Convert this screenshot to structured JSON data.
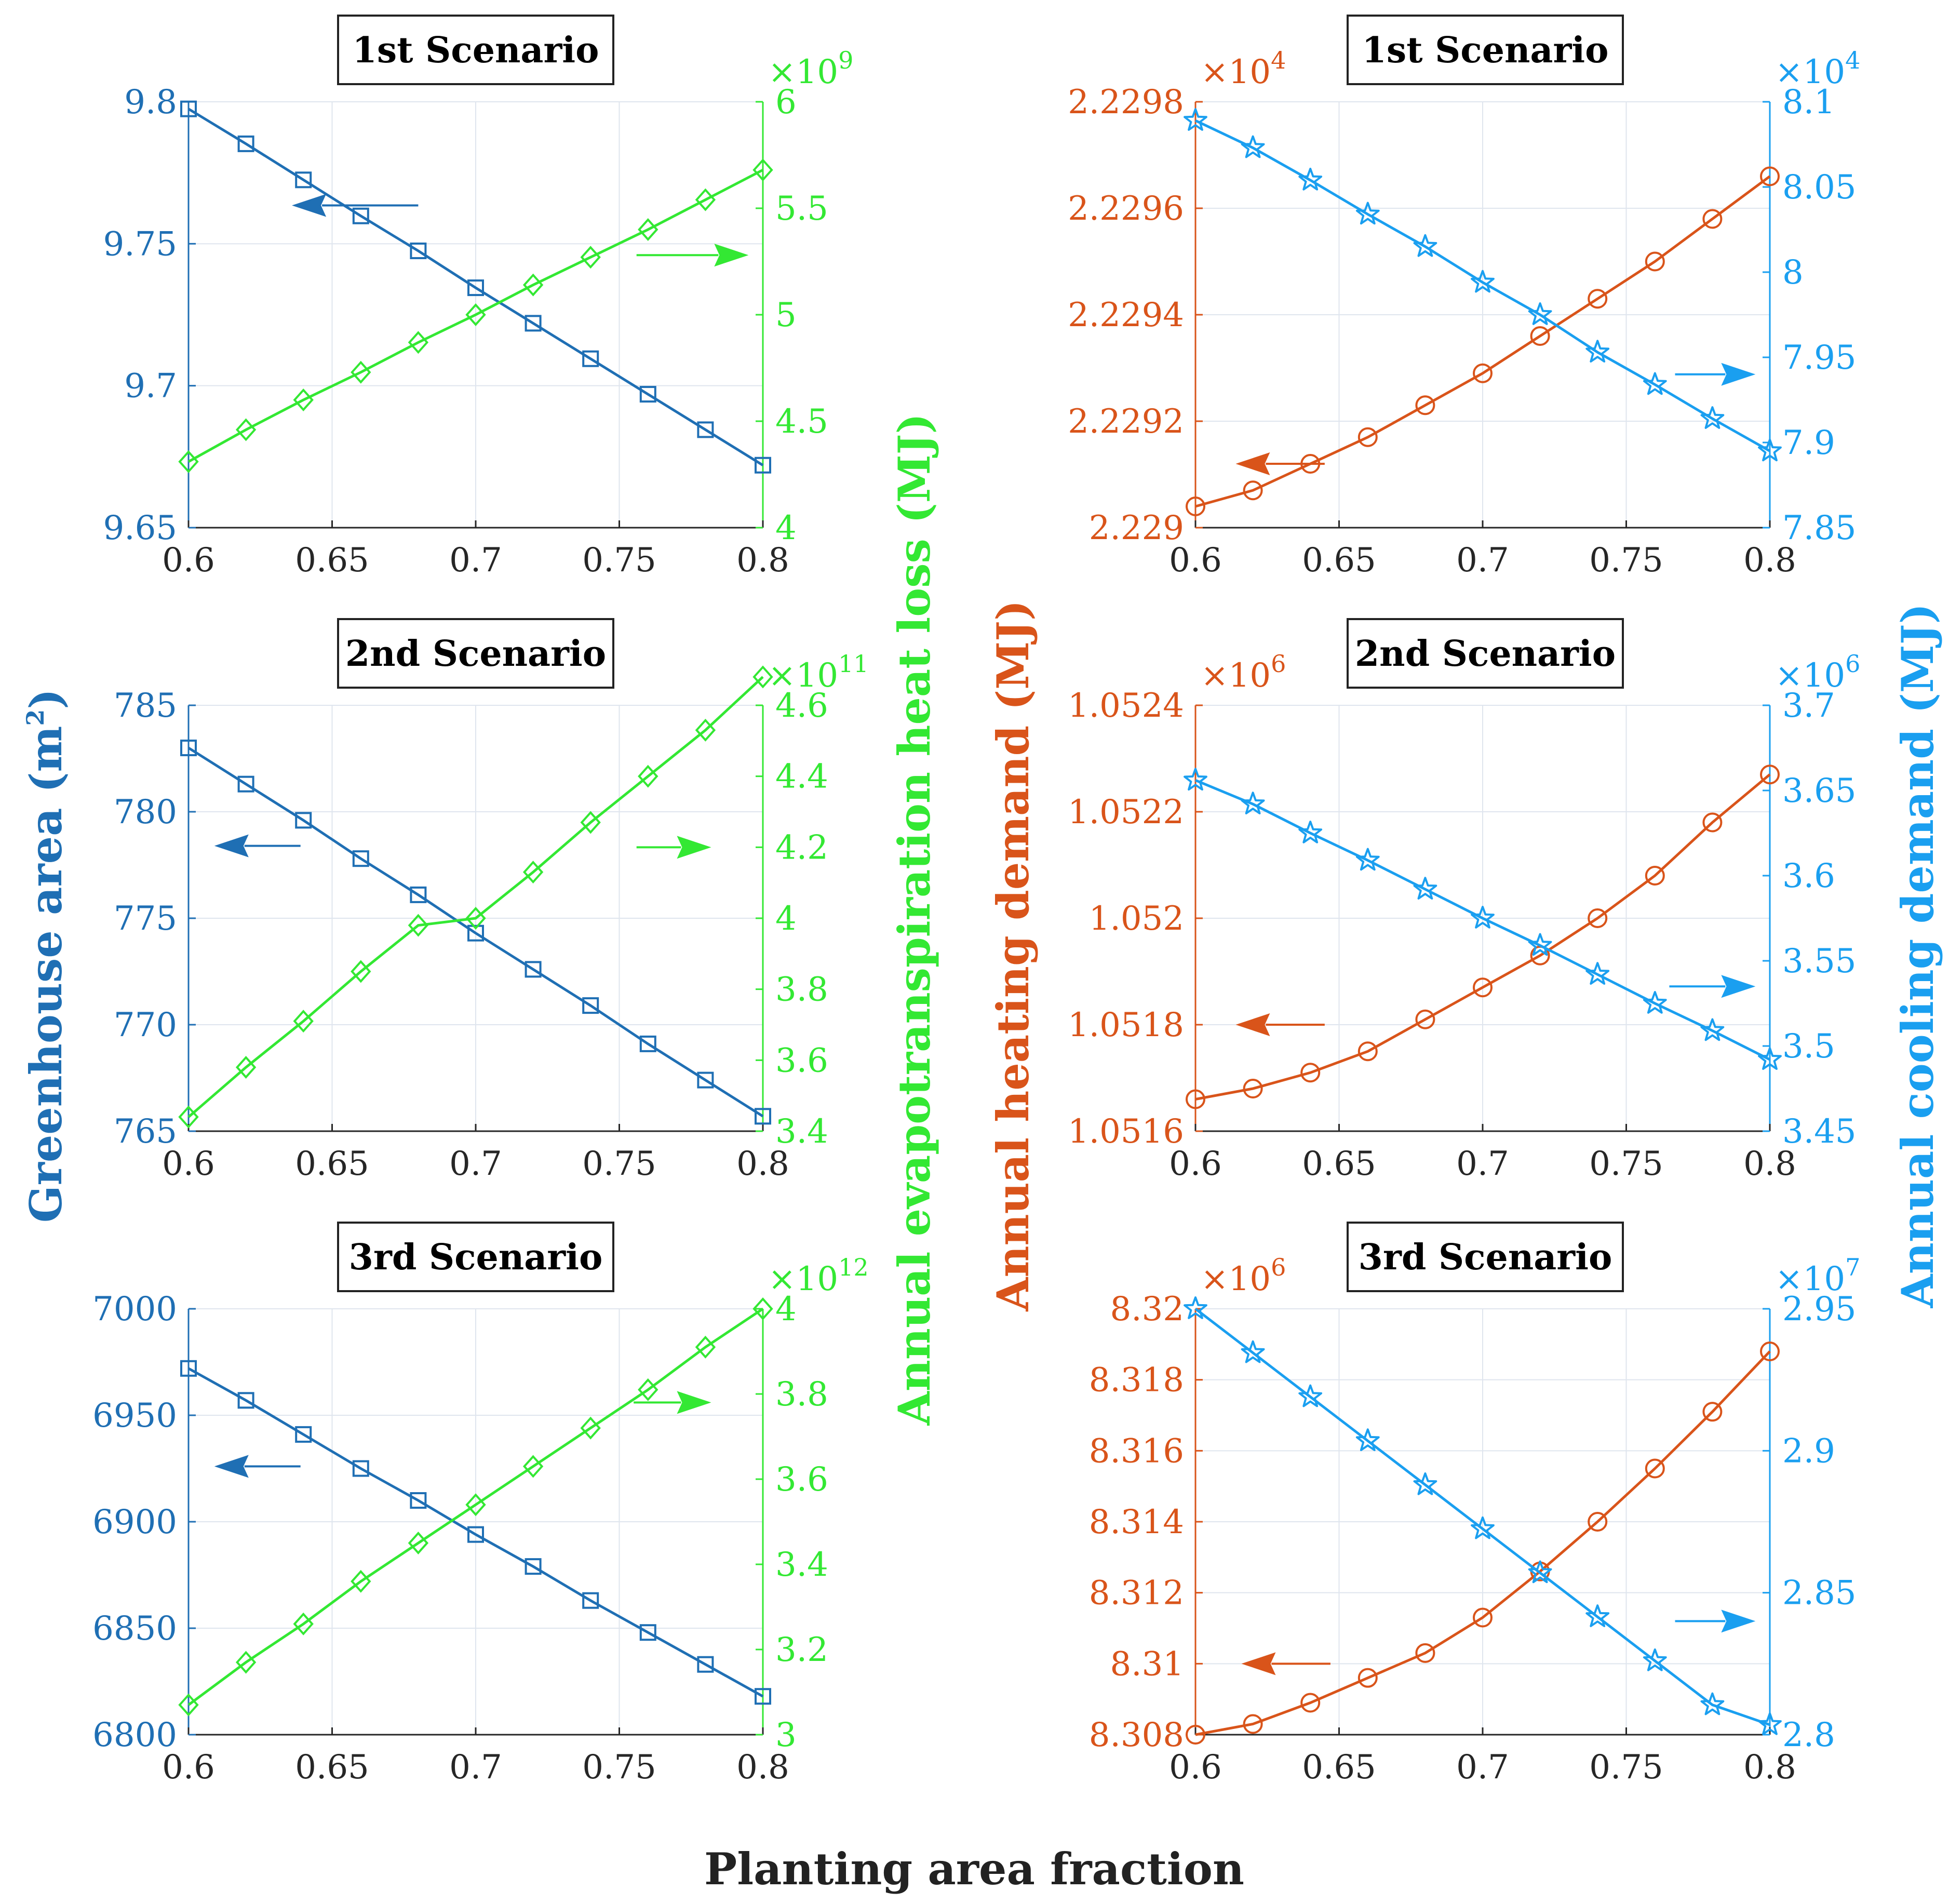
{
  "figure": {
    "xlabel": "Planting area fraction",
    "left_ylabel": "Greenhouse area (m",
    "left_ylabel_sup": "2",
    "left_ylabel_end": ")",
    "middle_ylabel": "Annual evapotranspiration heat loss (MJ)",
    "center_ylabel": "Annual heating demand (MJ)",
    "right_ylabel": "Annual cooling demand (MJ)",
    "colors": {
      "greenhouse": "#1f6fb4",
      "evapo": "#33e833",
      "heating": "#d9541a",
      "cooling": "#1a9ff0",
      "arrow_left_blue": "#1f6fb4",
      "arrow_green": "#33e833",
      "arrow_heating": "#d9541a",
      "arrow_cooling": "#1a9ff0"
    }
  },
  "chart_data": [
    {
      "type": "line",
      "title": "1st Scenario",
      "panel": "left",
      "x": [
        0.6,
        0.62,
        0.64,
        0.66,
        0.68,
        0.7,
        0.72,
        0.74,
        0.76,
        0.78,
        0.8
      ],
      "xlim": [
        0.6,
        0.8
      ],
      "xticks": [
        0.6,
        0.65,
        0.7,
        0.75,
        0.8
      ],
      "xtick_labels": [
        "0.6",
        "0.65",
        "0.7",
        "0.75",
        "0.8"
      ],
      "ylim_left": [
        9.65,
        9.8
      ],
      "yticks_left": [
        9.65,
        9.7,
        9.75,
        9.8
      ],
      "ytick_labels_left": [
        "9.65",
        "9.7",
        "9.75",
        "9.8"
      ],
      "ylim_right": [
        4,
        6
      ],
      "yticks_right": [
        4,
        4.5,
        5,
        5.5,
        6
      ],
      "ytick_labels_right": [
        "4",
        "4.5",
        "5",
        "5.5",
        "6"
      ],
      "exp_right": "9",
      "series": [
        {
          "name": "Greenhouse area",
          "axis": "left",
          "marker": "square",
          "color_key": "greenhouse",
          "values": [
            9.7975,
            9.7852,
            9.7725,
            9.7598,
            9.7475,
            9.7345,
            9.722,
            9.7095,
            9.697,
            9.6845,
            9.672
          ]
        },
        {
          "name": "Annual evapotranspiration heat loss",
          "axis": "right",
          "marker": "diamond",
          "color_key": "evapo",
          "values": [
            4.31,
            4.46,
            4.6,
            4.73,
            4.87,
            5.0,
            5.14,
            5.27,
            5.4,
            5.54,
            5.68
          ]
        }
      ],
      "arrows": [
        {
          "dir": "left",
          "color_key": "arrow_left_blue",
          "x": [
            0.636,
            0.68
          ],
          "y": 9.7635,
          "axis": "left"
        },
        {
          "dir": "right",
          "color_key": "arrow_green",
          "x": [
            0.756,
            0.795
          ],
          "y": 5.28,
          "axis": "right"
        }
      ]
    },
    {
      "type": "line",
      "title": "1st Scenario",
      "panel": "right",
      "x": [
        0.6,
        0.62,
        0.64,
        0.66,
        0.68,
        0.7,
        0.72,
        0.74,
        0.76,
        0.78,
        0.8
      ],
      "xlim": [
        0.6,
        0.8
      ],
      "xticks": [
        0.6,
        0.65,
        0.7,
        0.75,
        0.8
      ],
      "xtick_labels": [
        "0.6",
        "0.65",
        "0.7",
        "0.75",
        "0.8"
      ],
      "ylim_left": [
        2.229,
        2.2298
      ],
      "yticks_left": [
        2.229,
        2.2292,
        2.2294,
        2.2296,
        2.2298
      ],
      "ytick_labels_left": [
        "2.229",
        "2.2292",
        "2.2294",
        "2.2296",
        "2.2298"
      ],
      "exp_left": "4",
      "ylim_right": [
        7.85,
        8.1
      ],
      "yticks_right": [
        7.85,
        7.9,
        7.95,
        8,
        8.05,
        8.1
      ],
      "ytick_labels_right": [
        "7.85",
        "7.9",
        "7.95",
        "8",
        "8.05",
        "8.1"
      ],
      "exp_right": "4",
      "series": [
        {
          "name": "Annual heating demand",
          "axis": "left",
          "marker": "circle",
          "color_key": "heating",
          "values": [
            2.22904,
            2.22907,
            2.22912,
            2.22917,
            2.22923,
            2.22929,
            2.22936,
            2.22943,
            2.2295,
            2.22958,
            2.22966
          ]
        },
        {
          "name": "Annual cooling demand",
          "axis": "right",
          "marker": "star",
          "color_key": "cooling",
          "values": [
            8.089,
            8.073,
            8.054,
            8.034,
            8.015,
            7.994,
            7.975,
            7.953,
            7.934,
            7.914,
            7.895
          ]
        }
      ],
      "arrows": [
        {
          "dir": "left",
          "color_key": "arrow_heating",
          "x": [
            0.614,
            0.645
          ],
          "y": 2.22912,
          "axis": "left"
        },
        {
          "dir": "right",
          "color_key": "arrow_cooling",
          "x": [
            0.767,
            0.795
          ],
          "y": 7.94,
          "axis": "right"
        }
      ]
    },
    {
      "type": "line",
      "title": "2nd Scenario",
      "panel": "left",
      "x": [
        0.6,
        0.62,
        0.64,
        0.66,
        0.68,
        0.7,
        0.72,
        0.74,
        0.76,
        0.78,
        0.8
      ],
      "xlim": [
        0.6,
        0.8
      ],
      "xticks": [
        0.6,
        0.65,
        0.7,
        0.75,
        0.8
      ],
      "xtick_labels": [
        "0.6",
        "0.65",
        "0.7",
        "0.75",
        "0.8"
      ],
      "ylim_left": [
        765,
        785
      ],
      "yticks_left": [
        765,
        770,
        775,
        780,
        785
      ],
      "ytick_labels_left": [
        "765",
        "770",
        "775",
        "780",
        "785"
      ],
      "ylim_right": [
        3.4,
        4.6
      ],
      "yticks_right": [
        3.4,
        3.6,
        3.8,
        4,
        4.2,
        4.4,
        4.6
      ],
      "ytick_labels_right": [
        "3.4",
        "3.6",
        "3.8",
        "4",
        "4.2",
        "4.4",
        "4.6"
      ],
      "exp_right": "11",
      "series": [
        {
          "name": "Greenhouse area",
          "axis": "left",
          "marker": "square",
          "color_key": "greenhouse",
          "values": [
            783.0,
            781.3,
            779.6,
            777.8,
            776.1,
            774.3,
            772.6,
            770.9,
            769.1,
            767.4,
            765.7
          ]
        },
        {
          "name": "Annual evapotranspiration heat loss",
          "axis": "right",
          "marker": "diamond",
          "color_key": "evapo",
          "values": [
            3.44,
            3.58,
            3.71,
            3.85,
            3.98,
            4.0,
            4.13,
            4.27,
            4.4,
            4.53,
            4.68
          ]
        }
      ],
      "arrows": [
        {
          "dir": "left",
          "color_key": "arrow_left_blue",
          "x": [
            0.609,
            0.639
          ],
          "y": 778.4,
          "axis": "left"
        },
        {
          "dir": "right",
          "color_key": "arrow_green",
          "x": [
            0.756,
            0.782
          ],
          "y": 4.2,
          "axis": "right"
        }
      ]
    },
    {
      "type": "line",
      "title": "2nd Scenario",
      "panel": "right",
      "x": [
        0.6,
        0.62,
        0.64,
        0.66,
        0.68,
        0.7,
        0.72,
        0.74,
        0.76,
        0.78,
        0.8
      ],
      "xlim": [
        0.6,
        0.8
      ],
      "xticks": [
        0.6,
        0.65,
        0.7,
        0.75,
        0.8
      ],
      "xtick_labels": [
        "0.6",
        "0.65",
        "0.7",
        "0.75",
        "0.8"
      ],
      "ylim_left": [
        1.0516,
        1.0524
      ],
      "yticks_left": [
        1.0516,
        1.0518,
        1.052,
        1.0522,
        1.0524
      ],
      "ytick_labels_left": [
        "1.0516",
        "1.0518",
        "1.052",
        "1.0522",
        "1.0524"
      ],
      "exp_left": "6",
      "ylim_right": [
        3.45,
        3.7
      ],
      "yticks_right": [
        3.45,
        3.5,
        3.55,
        3.6,
        3.65,
        3.7
      ],
      "ytick_labels_right": [
        "3.45",
        "3.5",
        "3.55",
        "3.6",
        "3.65",
        "3.7"
      ],
      "exp_right": "6",
      "series": [
        {
          "name": "Annual heating demand",
          "axis": "left",
          "marker": "circle",
          "color_key": "heating",
          "values": [
            1.05166,
            1.05168,
            1.05171,
            1.05175,
            1.05181,
            1.05187,
            1.05193,
            1.052,
            1.05208,
            1.05218,
            1.05227
          ]
        },
        {
          "name": "Annual cooling demand",
          "axis": "right",
          "marker": "star",
          "color_key": "cooling",
          "values": [
            3.656,
            3.642,
            3.625,
            3.609,
            3.592,
            3.575,
            3.559,
            3.542,
            3.525,
            3.509,
            3.492
          ]
        }
      ],
      "arrows": [
        {
          "dir": "left",
          "color_key": "arrow_heating",
          "x": [
            0.614,
            0.645
          ],
          "y": 1.0518,
          "axis": "left"
        },
        {
          "dir": "right",
          "color_key": "arrow_cooling",
          "x": [
            0.765,
            0.795
          ],
          "y": 3.535,
          "axis": "right"
        }
      ]
    },
    {
      "type": "line",
      "title": "3rd Scenario",
      "panel": "left",
      "x": [
        0.6,
        0.62,
        0.64,
        0.66,
        0.68,
        0.7,
        0.72,
        0.74,
        0.76,
        0.78,
        0.8
      ],
      "xlim": [
        0.6,
        0.8
      ],
      "xticks": [
        0.6,
        0.65,
        0.7,
        0.75,
        0.8
      ],
      "xtick_labels": [
        "0.6",
        "0.65",
        "0.7",
        "0.75",
        "0.8"
      ],
      "ylim_left": [
        6800,
        7000
      ],
      "yticks_left": [
        6800,
        6850,
        6900,
        6950,
        7000
      ],
      "ytick_labels_left": [
        "6800",
        "6850",
        "6900",
        "6950",
        "7000"
      ],
      "ylim_right": [
        3,
        4
      ],
      "yticks_right": [
        3,
        3.2,
        3.4,
        3.6,
        3.8,
        4
      ],
      "ytick_labels_right": [
        "3",
        "3.2",
        "3.4",
        "3.6",
        "3.8",
        "4"
      ],
      "exp_right": "12",
      "series": [
        {
          "name": "Greenhouse area",
          "axis": "left",
          "marker": "square",
          "color_key": "greenhouse",
          "values": [
            6972,
            6957,
            6941,
            6925,
            6910,
            6894,
            6879,
            6863,
            6848,
            6833,
            6818
          ]
        },
        {
          "name": "Annual evapotranspiration heat loss",
          "axis": "right",
          "marker": "diamond",
          "color_key": "evapo",
          "values": [
            3.07,
            3.17,
            3.26,
            3.36,
            3.45,
            3.54,
            3.63,
            3.72,
            3.81,
            3.91,
            4.0
          ]
        }
      ],
      "arrows": [
        {
          "dir": "left",
          "color_key": "arrow_left_blue",
          "x": [
            0.609,
            0.639
          ],
          "y": 6926,
          "axis": "left"
        },
        {
          "dir": "right",
          "color_key": "arrow_green",
          "x": [
            0.755,
            0.782
          ],
          "y": 3.78,
          "axis": "right"
        }
      ]
    },
    {
      "type": "line",
      "title": "3rd Scenario",
      "panel": "right",
      "x": [
        0.6,
        0.62,
        0.64,
        0.66,
        0.68,
        0.7,
        0.72,
        0.74,
        0.76,
        0.78,
        0.8
      ],
      "xlim": [
        0.6,
        0.8
      ],
      "xticks": [
        0.6,
        0.65,
        0.7,
        0.75,
        0.8
      ],
      "xtick_labels": [
        "0.6",
        "0.65",
        "0.7",
        "0.75",
        "0.8"
      ],
      "ylim_left": [
        8.308,
        8.32
      ],
      "yticks_left": [
        8.308,
        8.31,
        8.312,
        8.314,
        8.316,
        8.318,
        8.32
      ],
      "ytick_labels_left": [
        "8.308",
        "8.31",
        "8.312",
        "8.314",
        "8.316",
        "8.318",
        "8.32"
      ],
      "exp_left": "6",
      "ylim_right": [
        2.8,
        2.95
      ],
      "yticks_right": [
        2.8,
        2.85,
        2.9,
        2.95
      ],
      "ytick_labels_right": [
        "2.8",
        "2.85",
        "2.9",
        "2.95"
      ],
      "exp_right": "7",
      "series": [
        {
          "name": "Annual heating demand",
          "axis": "left",
          "marker": "circle",
          "color_key": "heating",
          "values": [
            8.308,
            8.3083,
            8.3089,
            8.3096,
            8.3103,
            8.3113,
            8.3126,
            8.314,
            8.3155,
            8.3171,
            8.3188
          ]
        },
        {
          "name": "Annual cooling demand",
          "axis": "right",
          "marker": "star",
          "color_key": "cooling",
          "values": [
            2.95,
            2.9345,
            2.919,
            2.9035,
            2.888,
            2.8725,
            2.857,
            2.8415,
            2.826,
            2.8105,
            2.8035
          ]
        }
      ],
      "arrows": [
        {
          "dir": "left",
          "color_key": "arrow_heating",
          "x": [
            0.616,
            0.647
          ],
          "y": 8.31,
          "axis": "left"
        },
        {
          "dir": "right",
          "color_key": "arrow_cooling",
          "x": [
            0.767,
            0.795
          ],
          "y": 2.84,
          "axis": "right"
        }
      ]
    }
  ]
}
